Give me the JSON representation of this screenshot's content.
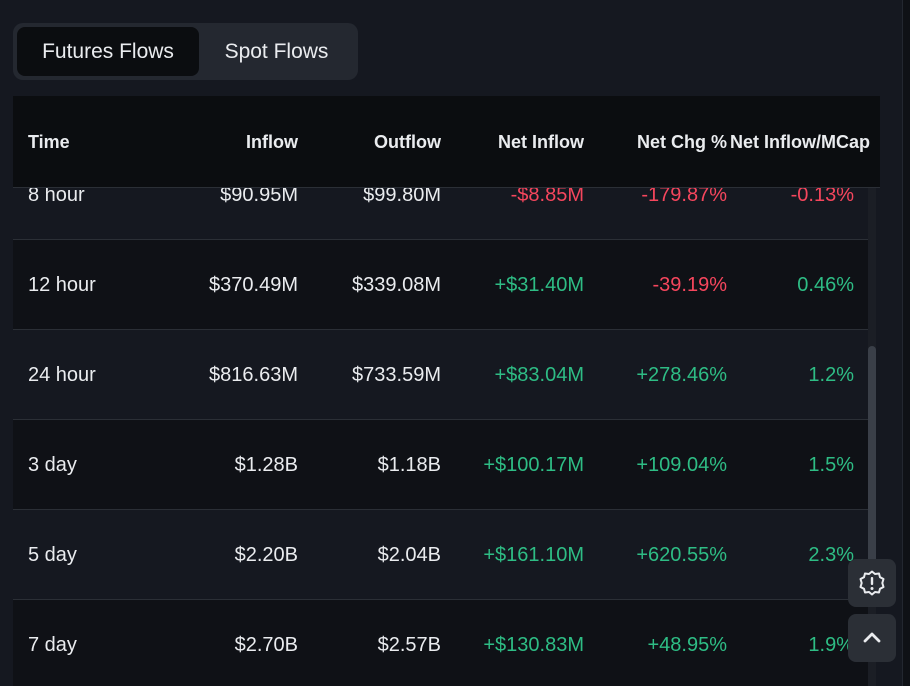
{
  "tabs": [
    {
      "label": "Futures Flows",
      "active": true
    },
    {
      "label": "Spot Flows",
      "active": false
    }
  ],
  "table": {
    "headers": [
      "Time",
      "Inflow",
      "Outflow",
      "Net Inflow",
      "Net Chg %",
      "Net Inflow/MCap"
    ],
    "rows": [
      {
        "time": "8 hour",
        "inflow": "$90.95M",
        "outflow": "$99.80M",
        "net_inflow": "-$8.85M",
        "net_chg": "-179.87%",
        "mcap": "-0.13%"
      },
      {
        "time": "12 hour",
        "inflow": "$370.49M",
        "outflow": "$339.08M",
        "net_inflow": "+$31.40M",
        "net_chg": "-39.19%",
        "mcap": "0.46%"
      },
      {
        "time": "24 hour",
        "inflow": "$816.63M",
        "outflow": "$733.59M",
        "net_inflow": "+$83.04M",
        "net_chg": "+278.46%",
        "mcap": "1.2%"
      },
      {
        "time": "3 day",
        "inflow": "$1.28B",
        "outflow": "$1.18B",
        "net_inflow": "+$100.17M",
        "net_chg": "+109.04%",
        "mcap": "1.5%"
      },
      {
        "time": "5 day",
        "inflow": "$2.20B",
        "outflow": "$2.04B",
        "net_inflow": "+$161.10M",
        "net_chg": "+620.55%",
        "mcap": "2.3%"
      },
      {
        "time": "7 day",
        "inflow": "$2.70B",
        "outflow": "$2.57B",
        "net_inflow": "+$130.83M",
        "net_chg": "+48.95%",
        "mcap": "1.9%"
      }
    ]
  },
  "floating_buttons": [
    {
      "icon": "alert-badge-icon"
    },
    {
      "icon": "chevron-up-icon"
    }
  ],
  "colors": {
    "background": "#151820",
    "positive": "#2ebd85",
    "negative": "#f6465d",
    "text": "#eaecef"
  }
}
